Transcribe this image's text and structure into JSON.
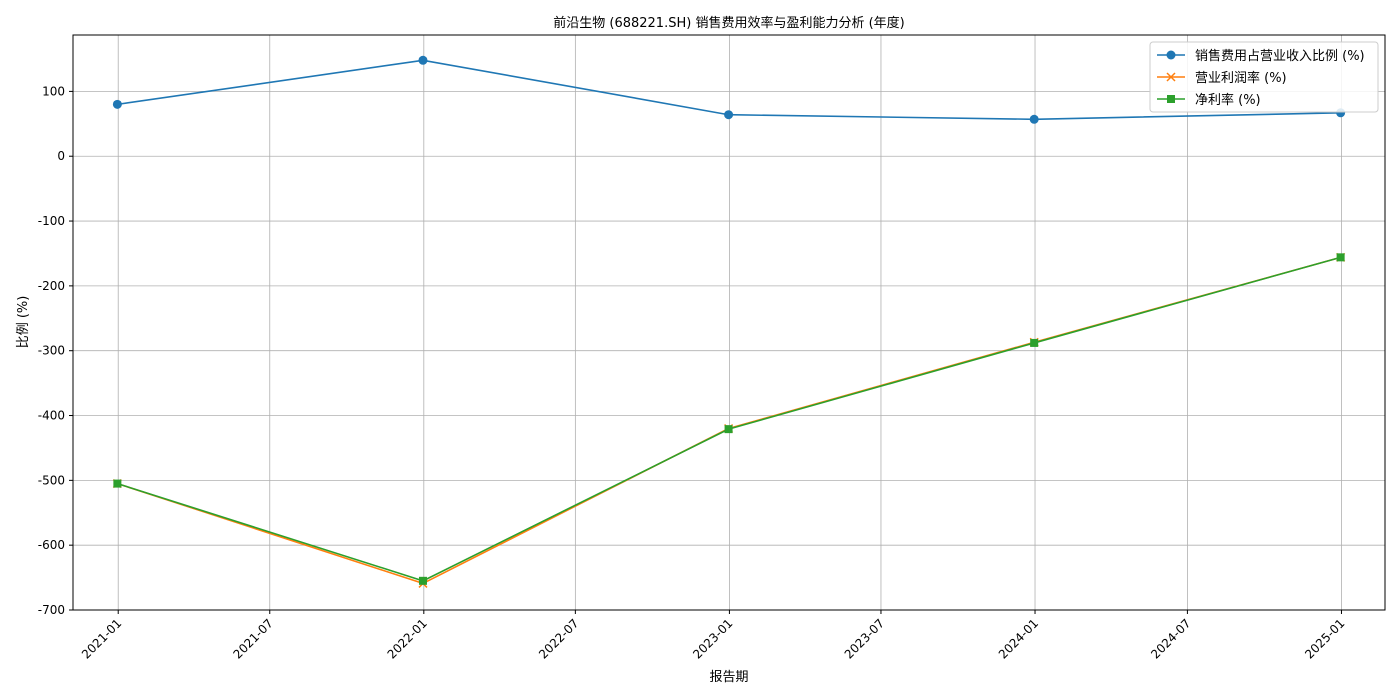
{
  "chart_data": {
    "type": "line",
    "title": "前沿生物 (688221.SH) 销售费用效率与盈利能力分析 (年度)",
    "xlabel": "报告期",
    "ylabel": "比例 (%)",
    "x": [
      "2020-12-31",
      "2021-12-31",
      "2022-12-31",
      "2023-12-31",
      "2024-12-31"
    ],
    "x_range": [
      "2020-11-08",
      "2025-02-22"
    ],
    "x_ticks": [
      "2021-01",
      "2021-07",
      "2022-01",
      "2022-07",
      "2023-01",
      "2023-07",
      "2024-01",
      "2024-07",
      "2025-01"
    ],
    "ylim": [
      -700,
      187
    ],
    "y_ticks": [
      -700,
      -600,
      -500,
      -400,
      -300,
      -200,
      -100,
      0,
      100
    ],
    "grid": true,
    "legend_position": "top-right",
    "series": [
      {
        "name": "销售费用占营业收入比例 (%)",
        "color": "#1f77b4",
        "marker": "circle",
        "values": [
          80,
          148,
          64,
          57,
          67
        ]
      },
      {
        "name": "营业利润率 (%)",
        "color": "#ff7f0e",
        "marker": "x",
        "values": [
          -505,
          -659,
          -420,
          -287,
          -156
        ]
      },
      {
        "name": "净利率 (%)",
        "color": "#2ca02c",
        "marker": "square",
        "values": [
          -505,
          -655,
          -421,
          -288,
          -156
        ]
      }
    ]
  }
}
